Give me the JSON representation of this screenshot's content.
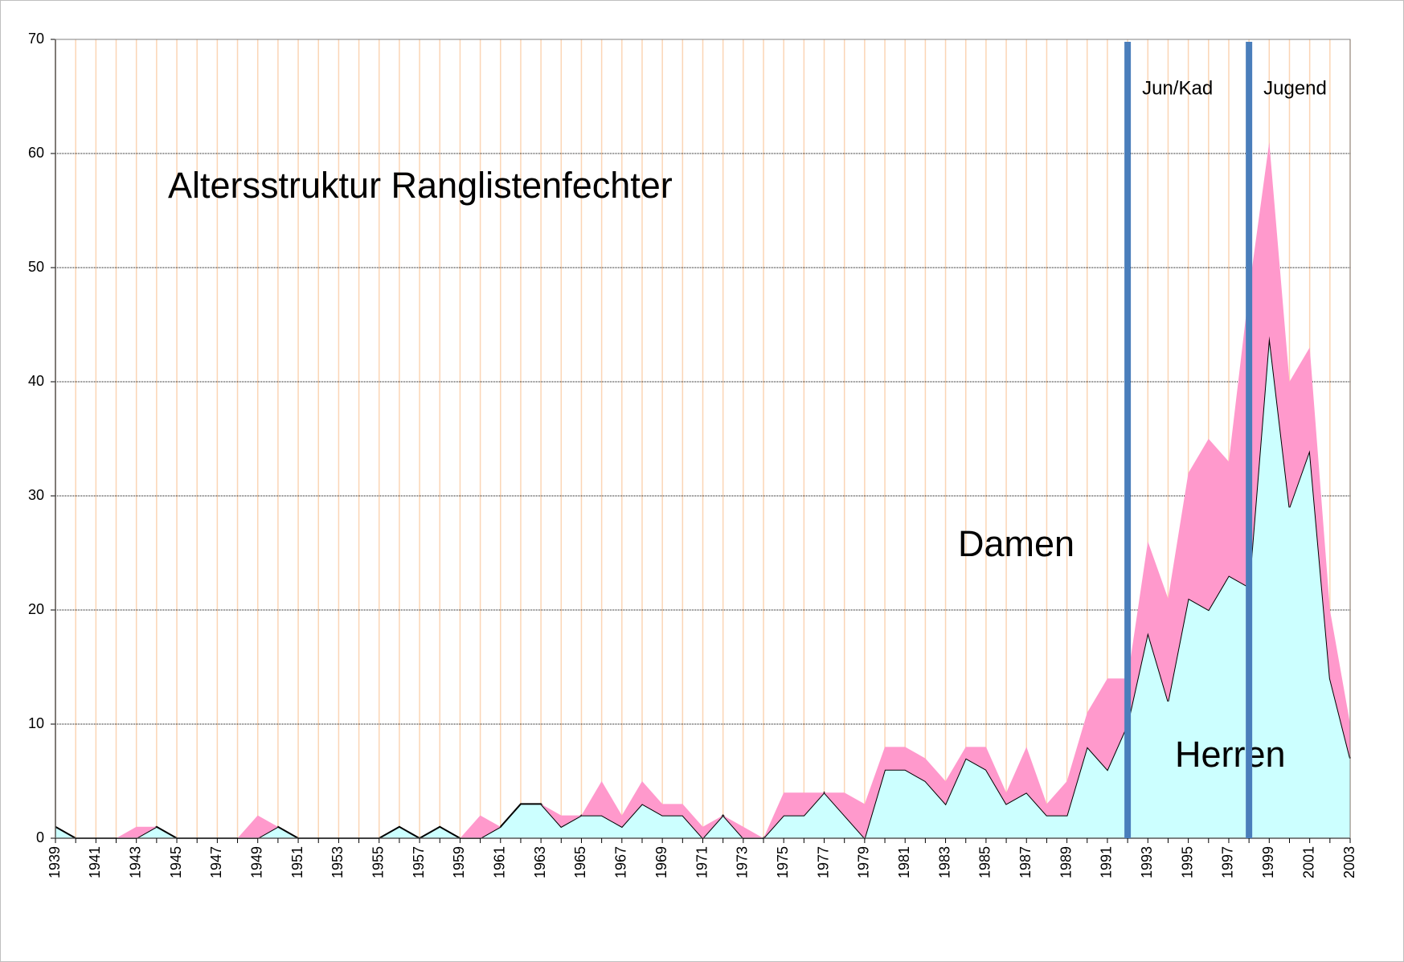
{
  "chart_data": {
    "type": "stacked_area",
    "title": "Altersstruktur Ranglistenfechter",
    "annotations": [
      "Damen",
      "Herren"
    ],
    "markers": [
      {
        "x": "1992",
        "label": "Jun/Kad",
        "color": "#4a7ebb"
      },
      {
        "x": "1998",
        "label": "Jugend",
        "color": "#4a7ebb"
      }
    ],
    "categories": [
      "1939",
      null,
      "1941",
      null,
      "1943",
      null,
      "1945",
      null,
      "1947",
      null,
      "1949",
      null,
      "1951",
      null,
      "1953",
      null,
      "1955",
      null,
      "1957",
      null,
      "1959",
      null,
      "1961",
      null,
      "1963",
      null,
      "1965",
      null,
      "1967",
      null,
      "1969",
      null,
      "1971",
      null,
      "1973",
      null,
      "1975",
      null,
      "1977",
      null,
      "1979",
      null,
      "1981",
      null,
      "1983",
      null,
      "1985",
      null,
      "1987",
      null,
      "1989",
      null,
      "1991",
      null,
      "1993",
      null,
      "1995",
      null,
      "1997",
      null,
      "1999",
      null,
      "2001",
      null,
      "2003"
    ],
    "series": [
      {
        "name": "Herren",
        "color": "#ccffff",
        "line_color": "#000000",
        "values": [
          1,
          0,
          0,
          0,
          0,
          1,
          0,
          0,
          0,
          0,
          0,
          1,
          0,
          0,
          0,
          0,
          0,
          1,
          0,
          1,
          0,
          0,
          1,
          3,
          3,
          1,
          2,
          2,
          1,
          3,
          2,
          2,
          0,
          2,
          0,
          0,
          2,
          2,
          4,
          2,
          0,
          6,
          6,
          5,
          3,
          7,
          6,
          3,
          4,
          2,
          2,
          8,
          6,
          10,
          18,
          12,
          21,
          20,
          23,
          22,
          44,
          29,
          34,
          14,
          7
        ]
      },
      {
        "name": "Damen",
        "color": "#ff99cc",
        "values": [
          0,
          0,
          0,
          0,
          1,
          0,
          0,
          0,
          0,
          0,
          2,
          0,
          0,
          0,
          0,
          0,
          0,
          0,
          0,
          0,
          0,
          2,
          0,
          0,
          0,
          1,
          0,
          3,
          1,
          2,
          1,
          1,
          1,
          0,
          1,
          0,
          2,
          2,
          0,
          2,
          3,
          2,
          2,
          2,
          2,
          1,
          2,
          1,
          4,
          1,
          3,
          3,
          8,
          4,
          8,
          9,
          11,
          15,
          10,
          26,
          17,
          11,
          9,
          6,
          3
        ]
      }
    ],
    "ylim": [
      0,
      70
    ],
    "yticks": [
      0,
      10,
      20,
      30,
      40,
      50,
      60,
      70
    ],
    "grid": true,
    "x_grid_color": "#fbd5b5"
  }
}
